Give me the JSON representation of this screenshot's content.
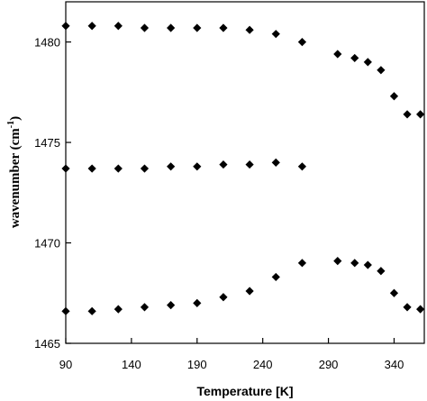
{
  "chart_data": {
    "type": "scatter",
    "xlabel": "Temperature [K]",
    "ylabel": "wavenumber (cm",
    "ylabel_superscript": "-1",
    "ylabel_suffix": ")",
    "xlim": [
      90,
      363
    ],
    "ylim": [
      1465,
      1482
    ],
    "xticks": [
      90,
      140,
      190,
      240,
      290,
      340
    ],
    "yticks": [
      1465,
      1470,
      1475,
      1480
    ],
    "grid": false,
    "legend": "none",
    "marker": "diamond",
    "marker_color": "#000000",
    "series": [
      {
        "x": [
          90,
          110,
          130,
          150,
          170,
          190,
          210,
          230,
          250,
          270,
          297,
          310,
          320,
          330,
          340,
          350,
          360
        ],
        "y": [
          1480.8,
          1480.8,
          1480.8,
          1480.7,
          1480.7,
          1480.7,
          1480.7,
          1480.6,
          1480.4,
          1480.0,
          1479.4,
          1479.2,
          1479.0,
          1478.6,
          1477.3,
          1476.4,
          1476.4
        ]
      },
      {
        "x": [
          90,
          110,
          130,
          150,
          170,
          190,
          210,
          230,
          250,
          270
        ],
        "y": [
          1473.7,
          1473.7,
          1473.7,
          1473.7,
          1473.8,
          1473.8,
          1473.9,
          1473.9,
          1474.0,
          1473.8
        ]
      },
      {
        "x": [
          90,
          110,
          130,
          150,
          170,
          190,
          210,
          230,
          250,
          270,
          297,
          310,
          320,
          330,
          340,
          350,
          360
        ],
        "y": [
          1466.6,
          1466.6,
          1466.7,
          1466.8,
          1466.9,
          1467.0,
          1467.3,
          1467.6,
          1468.3,
          1469.0,
          1469.1,
          1469.0,
          1468.9,
          1468.6,
          1467.5,
          1466.8,
          1466.7
        ]
      }
    ]
  }
}
